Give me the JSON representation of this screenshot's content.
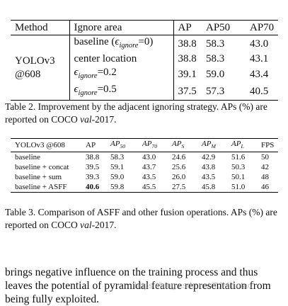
{
  "table2": {
    "header": [
      "Method",
      "Ignore area",
      "AP",
      "AP50",
      "AP70"
    ],
    "method": [
      "YOLOv3",
      "@608"
    ],
    "rows": [
      [
        {
          "pre": "baseline (",
          "sym": "ϵ",
          "sub": "ignore",
          "post": "=0)"
        },
        "38.8",
        "58.3",
        "43.0"
      ],
      [
        "center location",
        "38.8",
        "58.3",
        "43.1"
      ],
      [
        {
          "sym": "ϵ",
          "sub": "ignore",
          "post": "=0.2"
        },
        "39.1",
        "59.0",
        "43.4"
      ],
      [
        {
          "sym": "ϵ",
          "sub": "ignore",
          "post": "=0.5"
        },
        "37.5",
        "57.3",
        "40.5"
      ]
    ],
    "caption": [
      {
        "t": "Table 2. Improvement by the adjacent ignoring strategy. APs (%) are reported on COCO "
      },
      {
        "t": "val",
        "italic": true
      },
      {
        "t": "-2017."
      }
    ]
  },
  "table3": {
    "header": [
      "YOLOv3 @608",
      "AP",
      {
        "sym": "AP",
        "sub": "50"
      },
      {
        "sym": "AP",
        "sub": "70"
      },
      {
        "sym": "AP",
        "sub": "S"
      },
      {
        "sym": "AP",
        "sub": "M"
      },
      {
        "sym": "AP",
        "sub": "L"
      },
      "FPS"
    ],
    "rows": [
      [
        "baseline",
        "38.8",
        "58.3",
        "43.0",
        "24.6",
        "42.9",
        "51.6",
        "50"
      ],
      [
        "baseline + concat",
        "39.5",
        "59.1",
        "43.7",
        "25.6",
        "43.8",
        "50.3",
        "42"
      ],
      [
        "baseline + sum",
        "39.3",
        "59.0",
        "43.5",
        "26.0",
        "43.5",
        "50.1",
        "48"
      ],
      [
        "baseline + ASFF",
        {
          "text": "40.6",
          "bold": true
        },
        "59.8",
        "45.5",
        "27.5",
        "45.8",
        "51.0",
        "46"
      ]
    ],
    "caption": [
      {
        "t": "Table 3. Comparison of ASFF and other fusion operations. APs (%) are reported on COCO "
      },
      {
        "t": "val",
        "italic": true
      },
      {
        "t": "-2017."
      }
    ]
  },
  "paragraph": [
    "brings negative influence on the training process and thus",
    "leaves the potential of pyramidal feature representation from",
    "being fully exploited."
  ],
  "watermark": "https://blog.csdn.net/TJMiaotao"
}
